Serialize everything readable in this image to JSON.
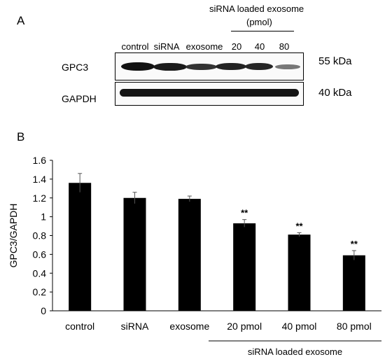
{
  "panel_a": {
    "letter": "A",
    "group_header_line1": "siRNA loaded exosome",
    "group_header_line2": "(pmol)",
    "lanes": [
      "control",
      "siRNA",
      "exosome",
      "20",
      "40",
      "80"
    ],
    "rows": [
      {
        "label": "GPC3",
        "marker": "55 kDa"
      },
      {
        "label": "GAPDH",
        "marker": "40 kDa"
      }
    ]
  },
  "panel_b": {
    "letter": "B"
  },
  "chart_data": {
    "type": "bar",
    "title": "",
    "xlabel": "",
    "ylabel": "GPC3/GAPDH",
    "categories": [
      "control",
      "siRNA",
      "exosome",
      "20 pmol",
      "40 pmol",
      "80 pmol"
    ],
    "values": [
      1.36,
      1.2,
      1.19,
      0.93,
      0.81,
      0.59
    ],
    "errors": [
      0.1,
      0.06,
      0.03,
      0.04,
      0.02,
      0.05
    ],
    "significance": [
      "",
      "",
      "",
      "**",
      "**",
      "**"
    ],
    "ylim": [
      0,
      1.6
    ],
    "yticks": [
      "0",
      "0.2",
      "0.4",
      "0.6",
      "0.8",
      "1",
      "1.2",
      "1.4",
      "1.6"
    ],
    "group_label": "siRNA loaded exosome",
    "bar_color": "#000000",
    "grid": false
  }
}
